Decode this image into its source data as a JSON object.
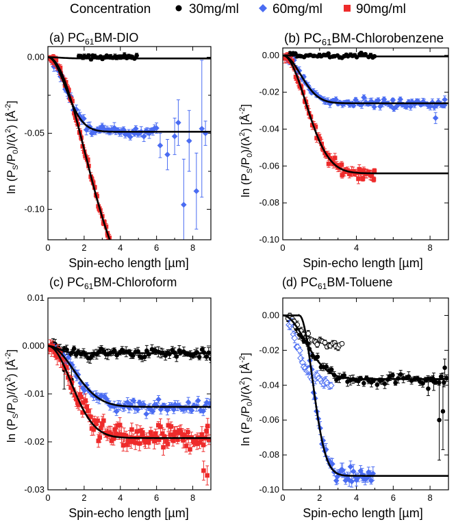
{
  "legend": {
    "label": "Concentration",
    "entries": [
      {
        "name": "30mg/ml",
        "color": "#000000",
        "marker": "circle"
      },
      {
        "name": "60mg/ml",
        "color": "#4a6cf2",
        "marker": "diamond"
      },
      {
        "name": "90mg/ml",
        "color": "#ee2b2b",
        "marker": "square"
      }
    ]
  },
  "colors": {
    "c30": "#000000",
    "c60": "#4a6cf2",
    "c90": "#ee2b2b",
    "fit": "#000000"
  },
  "chart_data": [
    {
      "id": "a",
      "type": "scatter",
      "title": "(a) PC61BM-DIO",
      "title_parts": {
        "prefix": "(a) PC",
        "sub": "61",
        "suffix": "BM-DIO"
      },
      "xlabel": "Spin-echo length [µm]",
      "ylabel": "ln (Ps/P0)/(λ²) [Å⁻²]",
      "xlim": [
        0,
        9
      ],
      "ylim": [
        -0.12,
        0.007
      ],
      "xticks": [
        0,
        2,
        4,
        6,
        8
      ],
      "xtick_labels": [
        "0",
        "2",
        "4",
        "6",
        "8"
      ],
      "yticks": [
        0,
        -0.05,
        -0.1
      ],
      "ytick_labels": [
        "0.00",
        "-0.05",
        "-0.10"
      ],
      "yminor": [
        -0.025,
        -0.075
      ],
      "series": [
        {
          "name": "30mg/ml",
          "marker": "circle",
          "color": "#000000",
          "x_range": [
            1.7,
            4.9
          ],
          "amp": 0,
          "tau": 1,
          "noise": 0.0008,
          "err": 0.0012,
          "n": 30,
          "x": [],
          "y": [],
          "e": []
        },
        {
          "name": "60mg/ml",
          "marker": "diamond",
          "color": "#4a6cf2",
          "x_range": [
            0.15,
            6.0
          ],
          "amp": -0.049,
          "tau": 1.35,
          "noise": 0.0015,
          "err": 0.0025,
          "n": 58,
          "x": [
            6.2,
            6.6,
            7.0,
            7.2,
            7.5,
            7.8,
            8.2,
            8.5,
            8.7
          ],
          "y": [
            -0.058,
            -0.064,
            -0.052,
            -0.043,
            -0.097,
            -0.055,
            -0.088,
            -0.047,
            -0.05
          ],
          "e": [
            0.008,
            0.01,
            0.012,
            0.015,
            0.03,
            0.02,
            0.025,
            0.045,
            0.008
          ]
        },
        {
          "name": "90mg/ml",
          "marker": "square",
          "color": "#ee2b2b",
          "x_range": [
            0.1,
            3.4
          ],
          "amp": -0.16,
          "tau": 2.9,
          "noise": 0.0015,
          "err": 0.002,
          "n": 48,
          "x": [],
          "y": [],
          "e": []
        }
      ],
      "fits": [
        {
          "amp": -0.0008,
          "tau": 1,
          "x_range": [
            0,
            9
          ]
        },
        {
          "amp": -0.049,
          "tau": 1.35,
          "x_range": [
            0,
            9
          ]
        },
        {
          "amp": -0.16,
          "tau": 2.9,
          "x_range": [
            0,
            4.1
          ]
        }
      ]
    },
    {
      "id": "b",
      "type": "scatter",
      "title": "(b) PC61BM-Chlorobenzene",
      "title_parts": {
        "prefix": "(b) PC",
        "sub": "61",
        "suffix": "BM-Chlorobenzene"
      },
      "xlabel": "Spin-echo length [µm]",
      "ylabel": "ln (Ps/P0)/(λ²) [Å⁻²]",
      "xlim": [
        0,
        9
      ],
      "ylim": [
        -0.1,
        0.004
      ],
      "xticks": [
        0,
        4,
        8
      ],
      "xtick_labels": [
        "0",
        "4",
        "8"
      ],
      "xminor": [
        2,
        6
      ],
      "yticks": [
        0,
        -0.02,
        -0.04,
        -0.06,
        -0.08,
        -0.1
      ],
      "ytick_labels": [
        "0.00",
        "-0.02",
        "-0.04",
        "-0.06",
        "-0.08",
        "-0.10"
      ],
      "series": [
        {
          "name": "30mg/ml",
          "marker": "circle",
          "color": "#000000",
          "x_range": [
            0.3,
            5.0
          ],
          "amp": 0,
          "tau": 1,
          "noise": 0.0006,
          "err": 0.0008,
          "n": 40,
          "x": [],
          "y": [],
          "e": []
        },
        {
          "name": "60mg/ml",
          "marker": "diamond",
          "color": "#4a6cf2",
          "x_range": [
            0.15,
            8.8
          ],
          "amp": -0.026,
          "tau": 1.35,
          "noise": 0.0012,
          "err": 0.0015,
          "n": 80,
          "x": [
            8.3,
            8.8
          ],
          "y": [
            -0.034,
            -0.024
          ],
          "e": [
            0.003,
            0.002
          ]
        },
        {
          "name": "90mg/ml",
          "marker": "square",
          "color": "#ee2b2b",
          "x_range": [
            0.1,
            5.0
          ],
          "amp": -0.064,
          "tau": 1.75,
          "noise": 0.0015,
          "err": 0.002,
          "n": 60,
          "x": [],
          "y": [],
          "e": []
        }
      ],
      "fits": [
        {
          "amp": -0.0006,
          "tau": 1,
          "x_range": [
            0,
            9
          ]
        },
        {
          "amp": -0.026,
          "tau": 1.35,
          "x_range": [
            0,
            9
          ]
        },
        {
          "amp": -0.064,
          "tau": 1.75,
          "x_range": [
            0,
            9
          ]
        }
      ]
    },
    {
      "id": "c",
      "type": "scatter",
      "title": "(c) PC61BM-Chloroform",
      "title_parts": {
        "prefix": "(c) PC",
        "sub": "61",
        "suffix": "BM-Chloroform"
      },
      "xlabel": "Spin-echo length [µm]",
      "ylabel": "ln (Ps/P0)/(λ²) [Å⁻²]",
      "xlim": [
        0,
        9
      ],
      "ylim": [
        -0.03,
        0.01
      ],
      "xticks": [
        0,
        2,
        4,
        6,
        8
      ],
      "xtick_labels": [
        "0",
        "2",
        "4",
        "6",
        "8"
      ],
      "yticks": [
        0.01,
        0,
        -0.01,
        -0.02,
        -0.03
      ],
      "ytick_labels": [
        "0.01",
        "0.000",
        "-0.01",
        "-0.02",
        "-0.03"
      ],
      "series": [
        {
          "name": "30mg/ml",
          "marker": "circle",
          "color": "#000000",
          "x_range": [
            0.3,
            9.0
          ],
          "amp": -0.0015,
          "tau": 0.8,
          "noise": 0.0005,
          "err": 0.0008,
          "n": 70,
          "x": [
            0.9,
            1.3
          ],
          "y": [
            -0.005,
            -0.007
          ],
          "e": [
            0.004,
            0.003
          ]
        },
        {
          "name": "60mg/ml",
          "marker": "diamond",
          "color": "#4a6cf2",
          "x_range": [
            0.3,
            8.9
          ],
          "amp": -0.0127,
          "tau": 2.0,
          "noise": 0.0006,
          "err": 0.0008,
          "n": 75,
          "x": [],
          "y": [],
          "e": []
        },
        {
          "name": "90mg/ml",
          "marker": "square",
          "color": "#ee2b2b",
          "x_range": [
            0.05,
            8.9
          ],
          "amp": -0.0192,
          "tau": 1.8,
          "noise": 0.0012,
          "err": 0.0012,
          "n": 120,
          "x": [
            8.6,
            8.8
          ],
          "y": [
            -0.026,
            -0.027
          ],
          "e": [
            0.002,
            0.002
          ]
        }
      ],
      "fits": [
        {
          "amp": -0.0015,
          "tau": 0.8,
          "x_range": [
            0,
            9
          ]
        },
        {
          "amp": -0.0127,
          "tau": 2.0,
          "x_range": [
            0,
            9
          ]
        },
        {
          "amp": -0.0192,
          "tau": 1.8,
          "x_range": [
            0,
            9
          ]
        }
      ]
    },
    {
      "id": "d",
      "type": "scatter",
      "title": "(d) PC61BM-Toluene",
      "title_parts": {
        "prefix": "(d) PC",
        "sub": "61",
        "suffix": "BM-Toluene"
      },
      "xlabel": "Spin-echo length [µm]",
      "ylabel": "ln (Ps/P0)/(λ²) [Å⁻²]",
      "xlim": [
        0,
        9
      ],
      "ylim": [
        -0.1,
        0.01
      ],
      "xticks": [
        0,
        2,
        4,
        6,
        8
      ],
      "xtick_labels": [
        "0",
        "2",
        "4",
        "6",
        "8"
      ],
      "yticks": [
        0,
        -0.02,
        -0.04,
        -0.06,
        -0.08,
        -0.1
      ],
      "ytick_labels": [
        "0.00",
        "-0.02",
        "-0.04",
        "-0.06",
        "-0.08",
        "-0.10"
      ],
      "series": [
        {
          "name": "30mg/ml",
          "marker": "circle",
          "color": "#000000",
          "x_range": [
            0.3,
            8.9
          ],
          "amp": -0.0365,
          "tau": 1.7,
          "noise": 0.0015,
          "err": 0.002,
          "n": 60,
          "x": [
            7.9,
            8.2,
            8.5,
            8.7,
            8.8
          ],
          "y": [
            -0.042,
            -0.038,
            -0.06,
            -0.055,
            -0.03
          ],
          "e": [
            0.004,
            0.005,
            0.023,
            0.022,
            0.005
          ]
        },
        {
          "name": "30mg/ml (open)",
          "marker": "circle-open",
          "color": "#000000",
          "x_range": [
            0.3,
            3.2
          ],
          "amp": -0.017,
          "tau": 1.2,
          "noise": 0.001,
          "err": 0.0015,
          "n": 30,
          "x": [],
          "y": [],
          "e": []
        },
        {
          "name": "60mg/ml",
          "marker": "diamond",
          "color": "#4a6cf2",
          "x_range": [
            1.5,
            4.9
          ],
          "amp": -0.092,
          "tau": 1.0,
          "noise": 0.002,
          "err": 0.003,
          "n": 40,
          "shift": 0.9,
          "x": [],
          "y": [],
          "e": []
        },
        {
          "name": "60mg/ml (open)",
          "marker": "diamond-open",
          "color": "#4a6cf2",
          "x_range": [
            0.35,
            2.6
          ],
          "amp": -0.038,
          "tau": 1.0,
          "noise": 0.0015,
          "err": 0.002,
          "n": 30,
          "x": [],
          "y": [],
          "e": []
        }
      ],
      "fits": [
        {
          "amp": -0.0365,
          "tau": 1.7,
          "x_range": [
            0,
            9
          ]
        },
        {
          "amp": -0.092,
          "tau": 1.0,
          "x_range": [
            0.9,
            9
          ],
          "shift": 0.9,
          "lead": [
            0,
            0.9
          ]
        }
      ]
    }
  ]
}
